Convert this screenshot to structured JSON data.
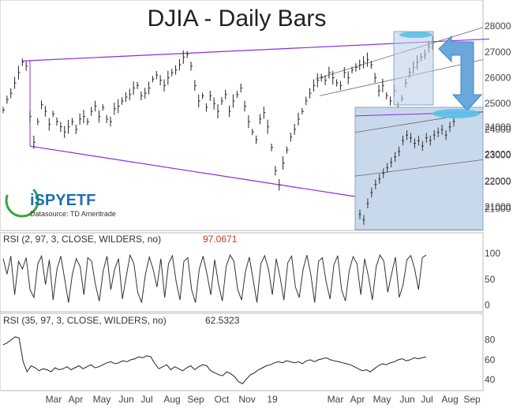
{
  "chart_data": [
    {
      "type": "line",
      "title": "DJIA - Daily Bars",
      "style": "ohlc-bars",
      "y_ticks": [
        21000,
        22000,
        23000,
        24000,
        25000,
        26000,
        27000,
        28000
      ],
      "ylim": [
        20300,
        28400
      ],
      "x_tick_labels": [
        "Mar",
        "Apr",
        "May",
        "Jun",
        "Jul",
        "Aug",
        "Sep",
        "Oct",
        "Nov",
        "19",
        "Mar",
        "Apr",
        "May",
        "Jun",
        "Jul",
        "Aug",
        "Sep"
      ],
      "series": [
        {
          "values": [
            24750,
            25150,
            25400,
            25800,
            26200,
            26600,
            26450,
            24500,
            23500,
            24300,
            24950,
            24700,
            24200,
            24600,
            24300,
            24100,
            23900,
            24100,
            24300,
            24000,
            24400,
            24500,
            24300,
            24700,
            24900,
            24500,
            24850,
            24400,
            24300,
            24800,
            24900,
            25100,
            25250,
            25350,
            25600,
            25700,
            25300,
            25400,
            25600,
            25950,
            26100,
            25900,
            25700,
            26000,
            26200,
            26300,
            26500,
            26800,
            26900,
            26450,
            25700,
            25100,
            25300,
            24850,
            25300,
            25000,
            24700,
            25100,
            25350,
            24700,
            25100,
            25350,
            25600,
            24900,
            24300,
            23900,
            23600,
            24400,
            24650,
            24100,
            23300,
            22400,
            21850,
            22700,
            23200,
            23700,
            24000,
            24400,
            24700,
            25100,
            25400,
            25700,
            25900,
            26000,
            25900,
            26200,
            26000,
            25800,
            25700,
            26200,
            26000,
            26300,
            26400,
            26500,
            26600,
            26700,
            26500,
            26000,
            25500,
            25700,
            25300,
            25100,
            25500,
            24800,
            25200,
            25800,
            26200,
            26400,
            26600,
            26800,
            26900,
            27200,
            27350
          ]
        }
      ],
      "annotations": {
        "trendline_color": "#8a2be2",
        "highlight_color": "#b8cde8"
      },
      "inset": {
        "y_ticks": [
          21000,
          22000,
          23000,
          24000,
          25000,
          26000
        ],
        "values": [
          20800,
          20600,
          21200,
          21600,
          21900,
          22100,
          22300,
          22500,
          22700,
          22900,
          23100,
          23500,
          23700,
          23600,
          23400,
          23500,
          23300,
          23600,
          23500,
          23700,
          23800,
          23900,
          23700,
          24000,
          24200
        ]
      }
    },
    {
      "type": "line",
      "label": "RSI (2, 97, 3, CLOSE, WILDERS, no)",
      "value_label": "97.0671",
      "label_color": "#c0392b",
      "y_ticks": [
        0,
        50,
        100
      ],
      "ylim": [
        -5,
        108
      ],
      "series": [
        {
          "values": [
            90,
            60,
            95,
            20,
            85,
            70,
            92,
            30,
            15,
            80,
            95,
            40,
            88,
            10,
            70,
            95,
            50,
            5,
            60,
            90,
            75,
            20,
            92,
            85,
            40,
            8,
            66,
            95,
            30,
            70,
            90,
            12,
            55,
            97,
            80,
            25,
            5,
            60,
            93,
            70,
            35,
            90,
            15,
            80,
            96,
            45,
            10,
            85,
            92,
            30,
            5,
            70,
            95,
            60,
            20,
            88,
            40,
            8,
            75,
            97,
            85,
            30,
            10,
            65,
            93,
            50,
            5,
            80,
            96,
            70,
            20,
            90,
            55,
            10,
            82,
            95,
            35,
            15,
            70,
            97,
            60,
            5,
            85,
            92,
            45,
            12,
            78,
            96,
            30,
            8,
            67,
            94,
            80,
            20,
            90,
            55,
            10,
            75,
            97,
            85,
            25,
            60,
            93,
            15,
            40,
            88,
            96,
            70,
            30,
            92,
            97
          ]
        }
      ]
    },
    {
      "type": "line",
      "label": "RSI (35, 97, 3, CLOSE, WILDERS, no)",
      "value_label": "62.5323",
      "label_color": "#333333",
      "y_ticks": [
        40,
        60,
        80
      ],
      "ylim": [
        33,
        90
      ],
      "series": [
        {
          "values": [
            75,
            77,
            80,
            83,
            82,
            58,
            48,
            54,
            52,
            49,
            51,
            50,
            48,
            52,
            50,
            51,
            53,
            50,
            52,
            54,
            51,
            53,
            55,
            52,
            53,
            55,
            57,
            58,
            56,
            57,
            59,
            58,
            60,
            61,
            63,
            62,
            64,
            63,
            56,
            51,
            53,
            55,
            50,
            53,
            51,
            49,
            52,
            54,
            50,
            53,
            55,
            54,
            49,
            47,
            45,
            44,
            48,
            46,
            43,
            38,
            36,
            41,
            45,
            47,
            50,
            52,
            54,
            55,
            57,
            58,
            57,
            59,
            58,
            57,
            58,
            56,
            59,
            60,
            58,
            60,
            61,
            62,
            60,
            59,
            58,
            57,
            56,
            55,
            53,
            51,
            49,
            50,
            48,
            51,
            54,
            56,
            55,
            57,
            58,
            60,
            61,
            59,
            60,
            62,
            61,
            62,
            63
          ]
        }
      ]
    }
  ],
  "x_axis": {
    "labels": [
      "Mar",
      "Apr",
      "May",
      "Jun",
      "Jul",
      "Aug",
      "Sep",
      "Oct",
      "Nov",
      "19",
      "Mar",
      "Apr",
      "May",
      "Jun",
      "Jul",
      "Aug",
      "Sep"
    ]
  },
  "logo": {
    "brand": "iSPYETF",
    "datasource": "Datasource: TD Ameritrade"
  },
  "colors": {
    "price_bars": "#222222",
    "trendline": "#8a2be2",
    "channel": "#666666",
    "highlight_fill": "#b8cde8",
    "arrow_fill": "#6aa8dc",
    "ellipse": "#5bc0e8",
    "logo_green": "#3aa53a",
    "logo_blue": "#1f6fb2"
  }
}
